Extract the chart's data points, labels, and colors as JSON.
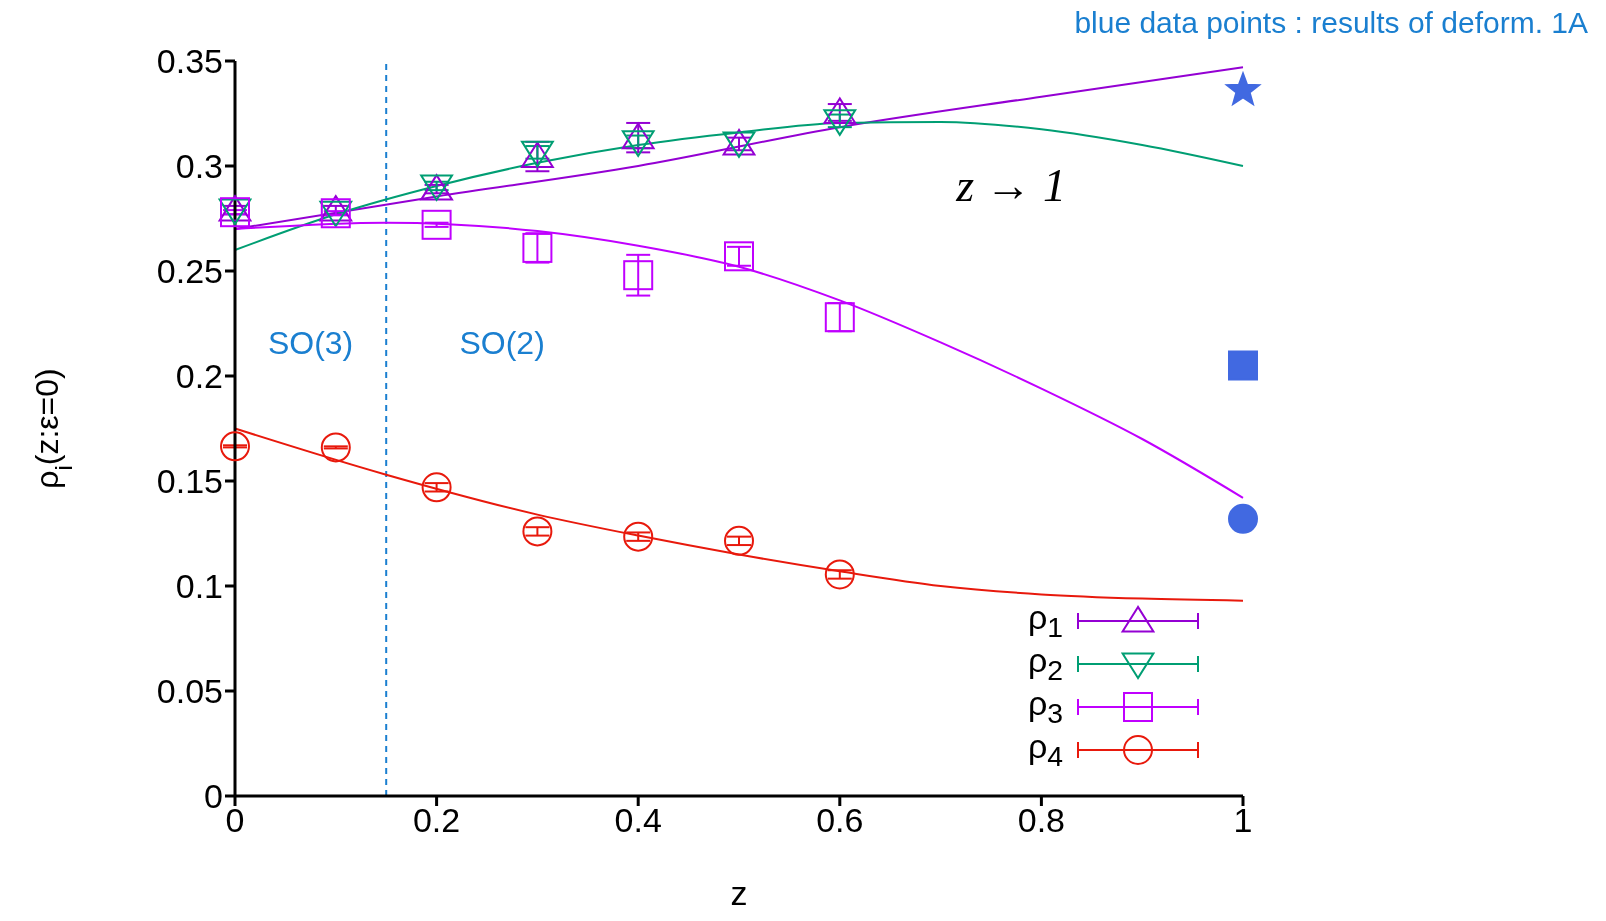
{
  "chart_data": {
    "type": "scatter",
    "xlabel": "z",
    "ylabel": "ρ$_{i}$(z:ε=0)",
    "annotations": [
      "blue data points : results of deform. 1A",
      "SO(3)",
      "SO(2)",
      "z → 1"
    ],
    "xlim": [
      0,
      1
    ],
    "xticks": [
      0,
      0.2,
      0.4,
      0.6,
      0.8,
      1
    ],
    "ylim": [
      0,
      0.35
    ],
    "yticks": [
      0,
      0.05,
      0.1,
      0.15,
      0.2,
      0.25,
      0.3,
      0.35
    ],
    "grid": false,
    "legend": "bottom right",
    "ref_lines": [
      {
        "axis": "x",
        "value": 0.15,
        "color": "#1a7fd0",
        "line_style": "dashed"
      }
    ],
    "series": [
      {
        "type": "line",
        "color": "#9400d3",
        "marker": "none",
        "x": [
          0,
          0.2,
          0.4,
          0.6,
          0.8,
          1
        ],
        "values": [
          0.27,
          0.2855,
          0.3,
          0.3185,
          0.333,
          0.347
        ]
      },
      {
        "type": "line",
        "color": "#009e73",
        "marker": "none",
        "x": [
          0,
          0.1,
          0.2,
          0.3,
          0.4,
          0.5,
          0.6,
          0.7,
          0.8,
          0.9,
          1
        ],
        "values": [
          0.26,
          0.277,
          0.2905,
          0.3015,
          0.31,
          0.316,
          0.3205,
          0.321,
          0.3175,
          0.31,
          0.3
        ]
      },
      {
        "type": "line",
        "color": "#c000ff",
        "marker": "none",
        "x": [
          0,
          0.15,
          0.3,
          0.4,
          0.5,
          0.6,
          0.7,
          0.8,
          0.9,
          1
        ],
        "values": [
          0.27,
          0.273,
          0.269,
          0.262,
          0.252,
          0.236,
          0.216,
          0.194,
          0.17,
          0.142
        ]
      },
      {
        "type": "line",
        "color": "#e8190c",
        "marker": "none",
        "x": [
          0,
          0.15,
          0.3,
          0.4,
          0.5,
          0.6,
          0.7,
          0.8,
          0.9,
          1
        ],
        "values": [
          0.175,
          0.153,
          0.134,
          0.124,
          0.115,
          0.107,
          0.1,
          0.096,
          0.094,
          0.093
        ]
      },
      {
        "name": "ρ$_{1}$",
        "color": "#9400d3",
        "marker": "triangle",
        "x": [
          0,
          0.1,
          0.2,
          0.3,
          0.4,
          0.5,
          0.6
        ],
        "values": [
          0.279,
          0.279,
          0.289,
          0.3045,
          0.3135,
          0.3105,
          0.3255
        ],
        "errors": [
          0.002,
          0.002,
          0.002,
          0.007,
          0.007,
          0.003,
          0.004
        ]
      },
      {
        "name": "ρ$_{2}$",
        "color": "#009e73",
        "marker": "triangle-down",
        "x": [
          0,
          0.1,
          0.2,
          0.3,
          0.4,
          0.5,
          0.6
        ],
        "values": [
          0.279,
          0.278,
          0.2905,
          0.3065,
          0.3115,
          0.311,
          0.3215
        ],
        "errors": [
          null,
          null,
          0.002,
          0.003,
          0.003,
          null,
          0.003
        ]
      },
      {
        "name": "ρ$_{3}$",
        "color": "#c000ff",
        "marker": "square",
        "x": [
          0,
          0.1,
          0.2,
          0.3,
          0.4,
          0.5,
          0.6
        ],
        "values": [
          0.278,
          0.2775,
          0.272,
          0.261,
          0.248,
          0.257,
          0.228
        ],
        "errors": [
          0.001,
          0.001,
          0.001,
          0.007,
          0.0097,
          0.0045,
          0.0067
        ]
      },
      {
        "name": "ρ$_{4}$",
        "color": "#e8190c",
        "marker": "circle",
        "x": [
          0,
          0.1,
          0.2,
          0.3,
          0.4,
          0.5,
          0.6
        ],
        "values": [
          0.1665,
          0.166,
          0.147,
          0.126,
          0.1235,
          0.1215,
          0.1055
        ],
        "errors": [
          0.0005,
          0.0005,
          0.002,
          0.002,
          0.002,
          0.002,
          0.002
        ]
      },
      {
        "color": "#4169e1",
        "marker": "star",
        "x": [
          1
        ],
        "values": [
          0.336
        ]
      },
      {
        "color": "#4169e1",
        "marker": "square",
        "x": [
          1
        ],
        "values": [
          0.205
        ]
      },
      {
        "color": "#4169e1",
        "marker": "circle",
        "x": [
          1
        ],
        "values": [
          0.132
        ]
      }
    ]
  }
}
